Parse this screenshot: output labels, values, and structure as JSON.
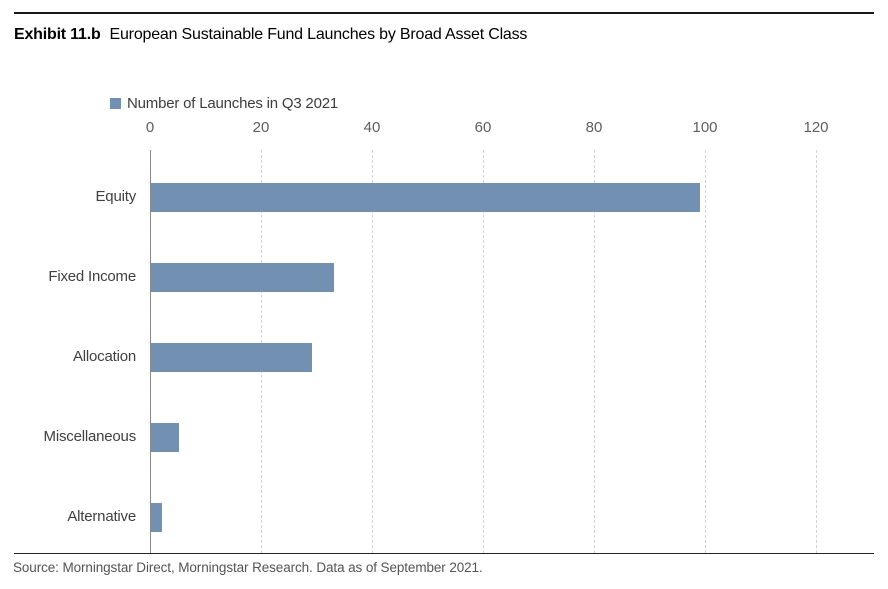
{
  "page": {
    "exhibit_label": "Exhibit 11.b",
    "title": "European Sustainable Fund Launches by Broad Asset Class",
    "source": "Source: Morningstar Direct, Morningstar Research. Data as of September 2021."
  },
  "legend": {
    "label": "Number of Launches in Q3 2021"
  },
  "colors": {
    "bar": "#7190b2",
    "axis_line": "#8a8a8a",
    "gridline": "#d4d4d4",
    "tick_label": "#5e5e5e",
    "category_label": "#404040",
    "rule": "#1a1a1a"
  },
  "chart_data": {
    "type": "bar",
    "orientation": "horizontal",
    "title": "Number of Launches in Q3 2021",
    "categories": [
      "Equity",
      "Fixed Income",
      "Allocation",
      "Miscellaneous",
      "Alternative"
    ],
    "values": [
      99,
      33,
      29,
      5,
      2
    ],
    "xlabel": "",
    "ylabel": "",
    "xlim": [
      0,
      130
    ],
    "xticks": [
      0,
      20,
      40,
      60,
      80,
      100,
      120
    ],
    "grid": "vertical-dashed",
    "legend_position": "top-left",
    "series_color": "#7190b2"
  }
}
